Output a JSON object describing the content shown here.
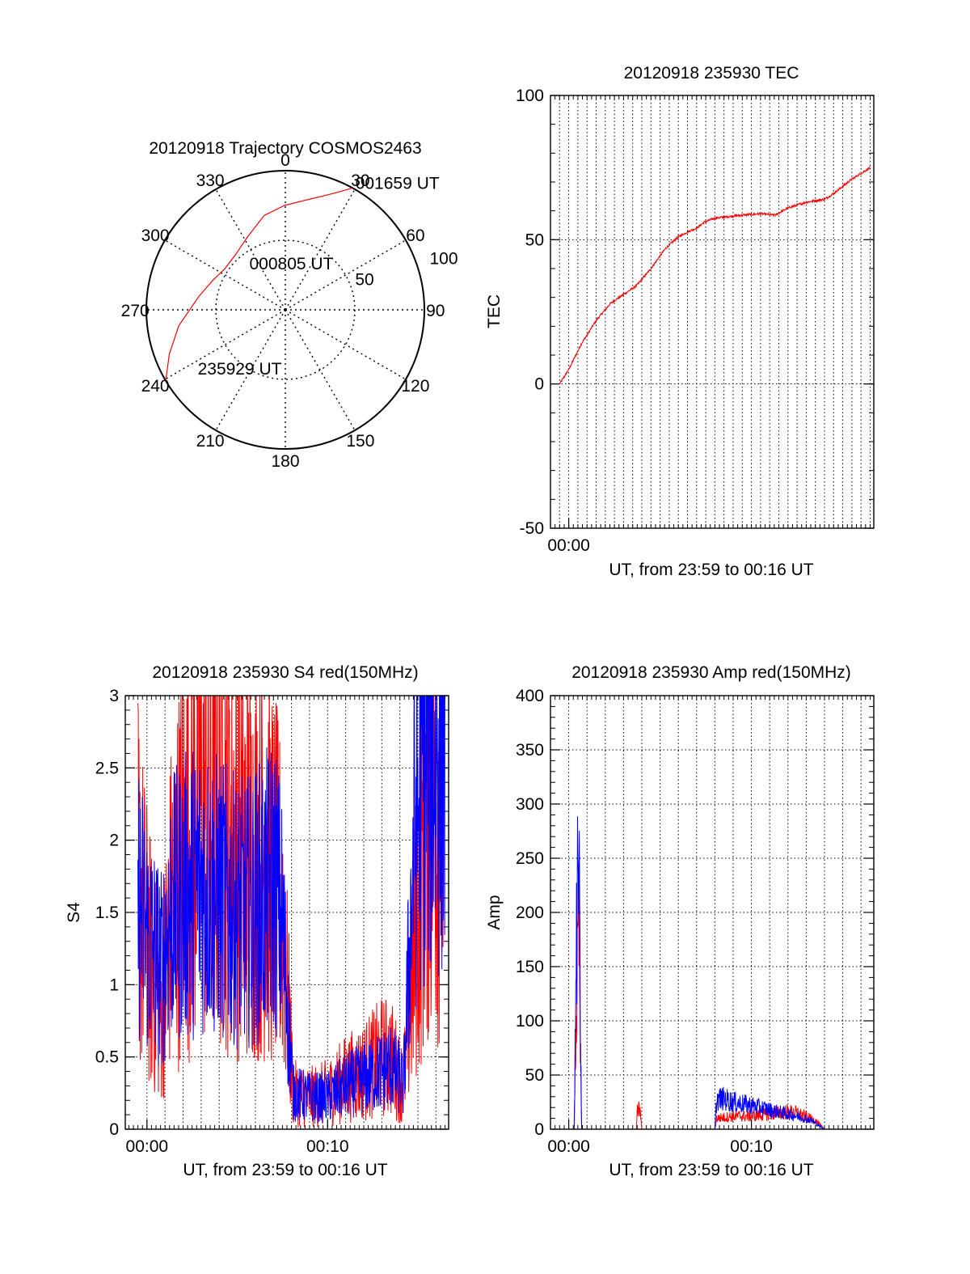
{
  "colors": {
    "red": "#ff0000",
    "blue": "#0000ff",
    "axis": "#000000",
    "grid": "#000000",
    "background": "#ffffff"
  },
  "chart_data": [
    {
      "id": "trajectory",
      "type": "polar",
      "title": "20120918 Trajectory COSMOS2463",
      "azimuth_labels": [
        "0",
        "30",
        "60",
        "90",
        "120",
        "150",
        "180",
        "210",
        "240",
        "270",
        "300",
        "330"
      ],
      "azimuth_values": [
        0,
        30,
        60,
        90,
        120,
        150,
        180,
        210,
        240,
        270,
        300,
        330
      ],
      "radial_labels": [
        "50",
        "100"
      ],
      "radial_values": [
        50,
        100
      ],
      "grid": true,
      "track_color": "red",
      "track": [
        {
          "az": 239.4,
          "zen": 100
        },
        {
          "az": 249.1,
          "zen": 89.3
        },
        {
          "az": 261.5,
          "zen": 77.5
        },
        {
          "az": 278.7,
          "zen": 63.0
        },
        {
          "az": 292.4,
          "zen": 56.2
        },
        {
          "az": 304.1,
          "zen": 52.6
        },
        {
          "az": 318.2,
          "zen": 53.5
        },
        {
          "az": 332.5,
          "zen": 59.0
        },
        {
          "az": 347.4,
          "zen": 69.5
        },
        {
          "az": 359.5,
          "zen": 75.0
        },
        {
          "az": 10.5,
          "zen": 80.2
        },
        {
          "az": 19.2,
          "zen": 87.0
        },
        {
          "az": 24.0,
          "zen": 92.5
        },
        {
          "az": 28.9,
          "zen": 100
        }
      ],
      "annotations": [
        {
          "text": "001659 UT",
          "az": 29,
          "zen": 104
        },
        {
          "text": "000805 UT",
          "az": 322,
          "zen": 42
        },
        {
          "text": "235929 UT",
          "az": 236,
          "zen": 76
        }
      ]
    },
    {
      "id": "tec",
      "type": "line",
      "title": "20120918 235930 TEC",
      "xlabel": "UT, from 23:59 to 00:16 UT",
      "ylabel": "TEC",
      "xlim": [
        -0.5,
        17.2
      ],
      "ylim": [
        -50,
        100
      ],
      "yticks": [
        -50,
        0,
        50,
        100
      ],
      "xticks": [
        {
          "x": 0.5,
          "label": "00:00"
        }
      ],
      "xgrid_step": 0.5,
      "grid": true,
      "series": [
        {
          "color": "red",
          "noise": 0.4,
          "x": [
            0,
            0.5,
            1.2,
            2.0,
            2.8,
            3.5,
            4.2,
            5.0,
            5.8,
            6.5,
            7.1,
            7.5,
            7.9,
            8.5,
            10.0,
            11.0,
            11.8,
            12.5,
            13.5,
            14.5,
            15.0,
            16.0,
            17.0
          ],
          "y": [
            0,
            5,
            14,
            22,
            28,
            31,
            34,
            40,
            47,
            51,
            53,
            54,
            56,
            57.5,
            58.5,
            59,
            58.5,
            61,
            63,
            64,
            66,
            71,
            75
          ]
        }
      ]
    },
    {
      "id": "s4",
      "type": "line",
      "title": "20120918 235930 S4 red(150MHz)",
      "xlabel": "UT, from 23:59 to 00:16 UT",
      "ylabel": "S4",
      "xlim": [
        -0.7,
        17.2
      ],
      "ylim": [
        0,
        3
      ],
      "yticks": [
        0,
        0.5,
        1,
        1.5,
        2,
        2.5,
        3
      ],
      "ytick_labels": [
        "0",
        "0.5",
        "1",
        "1.5",
        "2",
        "2.5",
        "3"
      ],
      "xticks": [
        {
          "x": 0.5,
          "label": "00:00"
        },
        {
          "x": 10.5,
          "label": "00:10"
        }
      ],
      "xgrid_step": 1,
      "grid": true,
      "series": [
        {
          "color": "red",
          "noise": 0.75,
          "x": [
            0,
            0.6,
            1.0,
            1.3,
            1.8,
            2.5,
            3.5,
            4.5,
            5.5,
            6.0,
            7.0,
            7.6,
            8.0,
            8.6,
            9.5,
            10.5,
            11.5,
            12.5,
            13.5,
            14.0,
            14.7,
            15.3,
            16.0,
            17.0
          ],
          "y": [
            1.7,
            1.2,
            0.95,
            0.8,
            1.5,
            1.9,
            2.2,
            2.2,
            2.0,
            1.9,
            1.9,
            1.7,
            1.5,
            0.25,
            0.22,
            0.25,
            0.35,
            0.4,
            0.5,
            0.5,
            0.3,
            1.2,
            2.3,
            2.3
          ]
        },
        {
          "color": "blue",
          "noise": 0.6,
          "x": [
            0,
            0.6,
            1.0,
            1.3,
            1.8,
            2.5,
            3.5,
            4.5,
            5.5,
            6.0,
            7.0,
            7.6,
            8.0,
            8.6,
            9.5,
            10.5,
            11.5,
            12.5,
            13.5,
            14.0,
            14.7,
            15.3,
            16.0,
            17.0
          ],
          "y": [
            1.6,
            1.3,
            1.2,
            1.1,
            1.5,
            1.6,
            1.7,
            1.6,
            1.5,
            1.5,
            1.6,
            1.7,
            1.4,
            0.25,
            0.22,
            0.22,
            0.3,
            0.35,
            0.4,
            0.45,
            0.3,
            2.0,
            2.6,
            2.6
          ]
        }
      ]
    },
    {
      "id": "amp",
      "type": "line",
      "title": "20120918 235930 Amp red(150MHz)",
      "xlabel": "UT, from 23:59 to 00:16 UT",
      "ylabel": "Amp",
      "xlim": [
        -0.5,
        17.2
      ],
      "ylim": [
        0,
        400
      ],
      "yticks": [
        0,
        50,
        100,
        150,
        200,
        250,
        300,
        350,
        400
      ],
      "xticks": [
        {
          "x": 0.5,
          "label": "00:00"
        },
        {
          "x": 10.5,
          "label": "00:10"
        }
      ],
      "xgrid_step": 1,
      "grid": true,
      "series": [
        {
          "color": "red",
          "noise": 0.45,
          "x": [
            0,
            0.8,
            0.9,
            1.0,
            1.05,
            1.1,
            1.2,
            4.2,
            4.25,
            4.3,
            4.45,
            4.5,
            8.5,
            8.6,
            9.5,
            10.5,
            11.5,
            12.5,
            13.0,
            14.0,
            14.5,
            17.0
          ],
          "y": [
            0,
            0,
            100,
            150,
            200,
            120,
            0,
            0,
            18,
            20,
            15,
            0,
            0,
            10,
            12,
            12,
            14,
            16,
            15,
            8,
            0,
            0
          ]
        },
        {
          "color": "blue",
          "noise": 0.4,
          "x": [
            0,
            0.8,
            0.9,
            1.0,
            1.05,
            1.1,
            1.2,
            8.5,
            8.6,
            9.0,
            9.5,
            10.5,
            11.5,
            12.5,
            13.0,
            13.8,
            14.5,
            17.0
          ],
          "y": [
            0,
            0,
            140,
            230,
            250,
            160,
            0,
            0,
            28,
            28,
            25,
            22,
            18,
            14,
            12,
            8,
            0,
            0
          ]
        }
      ]
    }
  ]
}
